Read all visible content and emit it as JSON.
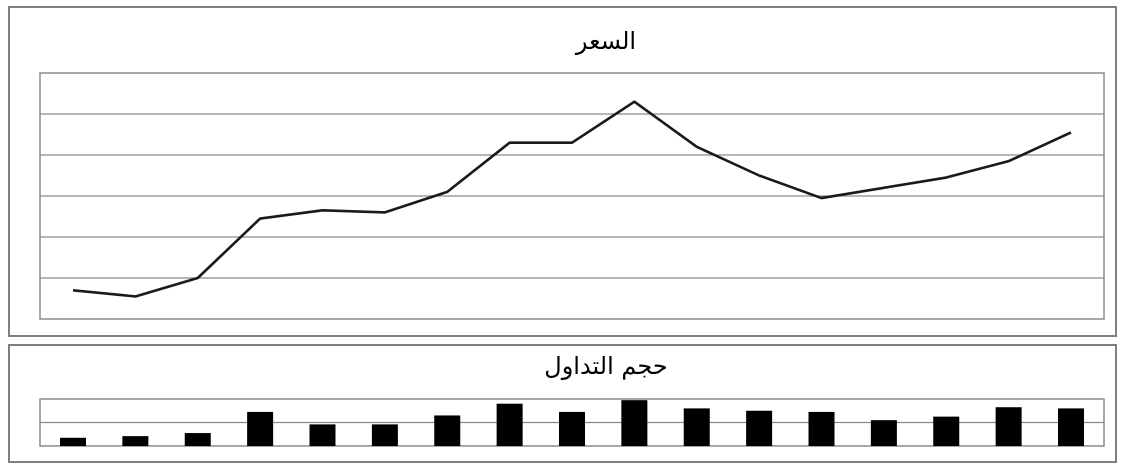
{
  "chart_data": [
    {
      "type": "line",
      "title": "السعر",
      "x": [
        1,
        2,
        3,
        4,
        5,
        6,
        7,
        8,
        9,
        10,
        11,
        12,
        13,
        14,
        15,
        16,
        17
      ],
      "series": [
        {
          "values": [
            0.7,
            0.55,
            1.0,
            2.45,
            2.65,
            2.6,
            3.1,
            4.3,
            4.3,
            5.3,
            4.2,
            3.5,
            2.95,
            3.2,
            3.45,
            3.85,
            4.55
          ]
        }
      ],
      "ylim": [
        0,
        6
      ],
      "grid": true,
      "y_tick_labels": false,
      "x_tick_labels": false
    },
    {
      "type": "bar",
      "title": "حجم التداول",
      "categories": [
        1,
        2,
        3,
        4,
        5,
        6,
        7,
        8,
        9,
        10,
        11,
        12,
        13,
        14,
        15,
        16,
        17
      ],
      "values": [
        0.35,
        0.42,
        0.55,
        1.45,
        0.92,
        0.92,
        1.3,
        1.8,
        1.45,
        1.95,
        1.6,
        1.5,
        1.45,
        1.1,
        1.25,
        1.65,
        1.6
      ],
      "ylim": [
        0,
        2
      ],
      "grid": true,
      "y_tick_labels": false,
      "x_tick_labels": false
    }
  ],
  "colors": {
    "line": "#1a1a1a",
    "bars": "#000000",
    "grid": "#8a8a8a",
    "panel_border": "#7f7f7f"
  }
}
